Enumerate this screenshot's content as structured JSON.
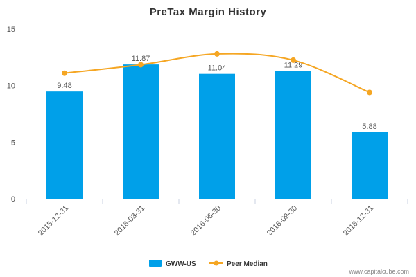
{
  "chart_data": {
    "type": "bar",
    "title": "PreTax Margin History",
    "categories": [
      "2015-12-31",
      "2016-03-31",
      "2016-06-30",
      "2016-09-30",
      "2016-12-31"
    ],
    "series": [
      {
        "name": "GWW-US",
        "kind": "bar",
        "color": "#00a0e9",
        "values": [
          9.48,
          11.87,
          11.04,
          11.29,
          5.88
        ],
        "labels": [
          "9.48",
          "11.87",
          "11.04",
          "11.29",
          "5.88"
        ]
      },
      {
        "name": "Peer Median",
        "kind": "line",
        "color": "#f5a623",
        "values": [
          11.1,
          11.85,
          12.8,
          12.25,
          9.4
        ]
      }
    ],
    "yticks": [
      "0",
      "5",
      "10",
      "15"
    ],
    "ylim": [
      0,
      15
    ],
    "grid": false,
    "legend_position": "bottom-center"
  },
  "credit": "www.capitalcube.com"
}
